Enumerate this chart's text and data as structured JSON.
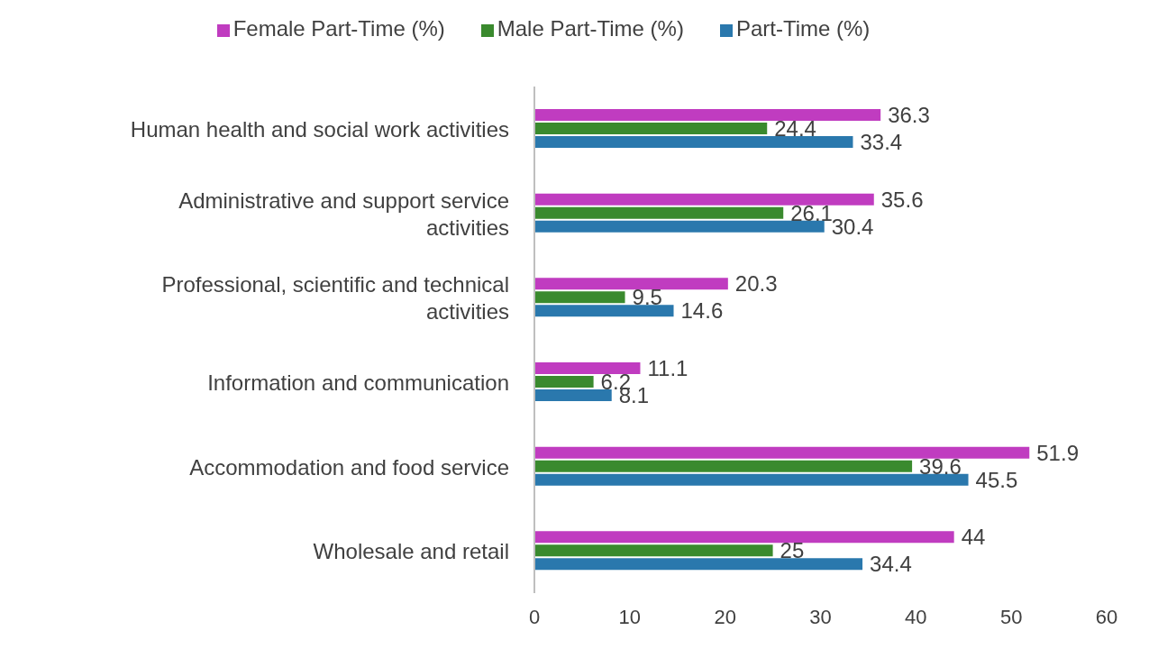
{
  "chart_data": {
    "type": "bar",
    "orientation": "horizontal",
    "categories": [
      "Human health and social work activities",
      "Administrative and support service activities",
      "Professional, scientific and technical activities",
      "Information and communication",
      "Accommodation and food service",
      "Wholesale and retail"
    ],
    "series": [
      {
        "name": "Female Part-Time (%)",
        "color": "#c03cc0",
        "values": [
          36.3,
          35.6,
          20.3,
          11.1,
          51.9,
          44
        ]
      },
      {
        "name": "Male Part-Time (%)",
        "color": "#3a8a2e",
        "values": [
          24.4,
          26.1,
          9.5,
          6.2,
          39.6,
          25
        ]
      },
      {
        "name": "Part-Time (%)",
        "color": "#2a78ad",
        "values": [
          33.4,
          30.4,
          14.6,
          8.1,
          45.5,
          34.4
        ]
      }
    ],
    "xlim": [
      0,
      60
    ],
    "xticks": [
      0,
      10,
      20,
      30,
      40,
      50,
      60
    ],
    "data_labels": true,
    "legend": "top",
    "grid": false
  }
}
